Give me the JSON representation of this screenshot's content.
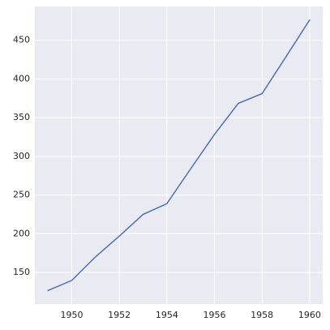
{
  "chart_data": {
    "type": "line",
    "x": [
      1949,
      1950,
      1951,
      1952,
      1953,
      1954,
      1955,
      1956,
      1957,
      1958,
      1959,
      1960
    ],
    "series": [
      {
        "color": "#4c72b0",
        "values": [
          126.7,
          139.7,
          170.2,
          197.0,
          225.0,
          238.9,
          284.0,
          328.3,
          368.4,
          381.0,
          428.3,
          476.2
        ]
      }
    ],
    "xlim": [
      1948.45,
      1960.55
    ],
    "xticks": [
      1950,
      1952,
      1954,
      1956,
      1958,
      1960
    ],
    "ylim": [
      109.2,
      493.6
    ],
    "yticks": [
      150,
      200,
      250,
      300,
      350,
      400,
      450
    ],
    "grid": true,
    "background": "#eaeaf2"
  }
}
